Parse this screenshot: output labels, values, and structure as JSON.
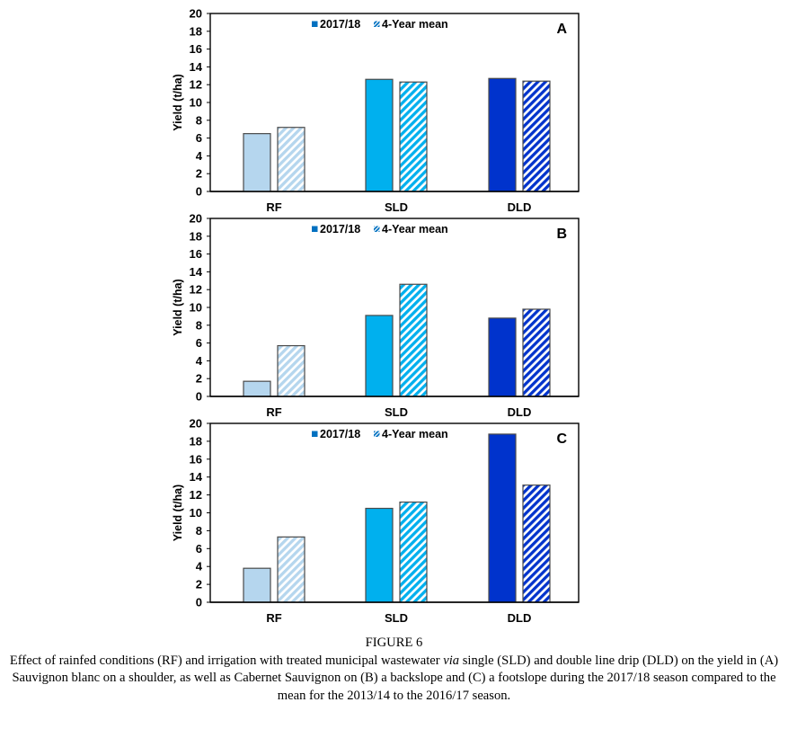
{
  "figure": {
    "label": "FIGURE 6",
    "caption_parts": [
      "Effect of rainfed conditions (RF) and irrigation with treated municipal wastewater ",
      "via",
      " single (SLD) and double line drip (DLD) on the yield in (A) Sauvignon blanc on a shoulder, as well as Cabernet Sauvignon on (B) a backslope and (C) a footslope during the 2017/18 season compared to the mean for the 2013/14 to the 2016/17 season."
    ]
  },
  "colors": {
    "RF": "#b5d6ee",
    "SLD": "#00b0ee",
    "DLD": "#0033cc",
    "legend_swatch": "#0070c0",
    "edge": "#4a4a4a"
  },
  "chart_data": [
    {
      "type": "bar",
      "panel": "A",
      "categories": [
        "RF",
        "SLD",
        "DLD"
      ],
      "series": [
        {
          "name": "2017/18",
          "pattern": "solid",
          "values": [
            6.5,
            12.6,
            12.7
          ]
        },
        {
          "name": "4-Year mean",
          "pattern": "hatched",
          "values": [
            7.2,
            12.3,
            12.4
          ]
        }
      ],
      "xlabel": "",
      "ylabel": "Yield (t/ha)",
      "ylim": [
        0,
        20
      ],
      "yticks": [
        0,
        2,
        4,
        6,
        8,
        10,
        12,
        14,
        16,
        18,
        20
      ],
      "grid": false,
      "legend_position": "top-center"
    },
    {
      "type": "bar",
      "panel": "B",
      "categories": [
        "RF",
        "SLD",
        "DLD"
      ],
      "series": [
        {
          "name": "2017/18",
          "pattern": "solid",
          "values": [
            1.7,
            9.1,
            8.8
          ]
        },
        {
          "name": "4-Year mean",
          "pattern": "hatched",
          "values": [
            5.7,
            12.6,
            9.8
          ]
        }
      ],
      "xlabel": "",
      "ylabel": "Yield (t/ha)",
      "ylim": [
        0,
        20
      ],
      "yticks": [
        0,
        2,
        4,
        6,
        8,
        10,
        12,
        14,
        16,
        18,
        20
      ],
      "grid": false,
      "legend_position": "top-center"
    },
    {
      "type": "bar",
      "panel": "C",
      "categories": [
        "RF",
        "SLD",
        "DLD"
      ],
      "series": [
        {
          "name": "2017/18",
          "pattern": "solid",
          "values": [
            3.8,
            10.5,
            18.8
          ]
        },
        {
          "name": "4-Year mean",
          "pattern": "hatched",
          "values": [
            7.3,
            11.2,
            13.1
          ]
        }
      ],
      "xlabel": "",
      "ylabel": "Yield (t/ha)",
      "ylim": [
        0,
        20
      ],
      "yticks": [
        0,
        2,
        4,
        6,
        8,
        10,
        12,
        14,
        16,
        18,
        20
      ],
      "grid": false,
      "legend_position": "top-center"
    }
  ]
}
